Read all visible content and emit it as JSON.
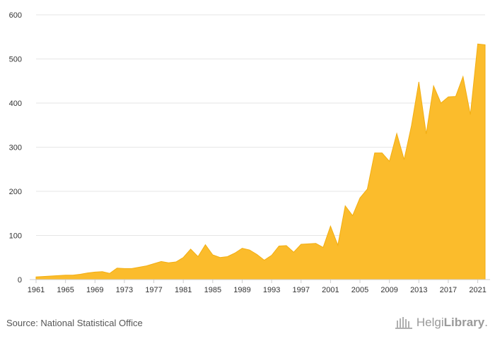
{
  "chart_data": {
    "type": "area",
    "x": [
      1961,
      1962,
      1963,
      1964,
      1965,
      1966,
      1967,
      1968,
      1969,
      1970,
      1971,
      1972,
      1973,
      1974,
      1975,
      1976,
      1977,
      1978,
      1979,
      1980,
      1981,
      1982,
      1983,
      1984,
      1985,
      1986,
      1987,
      1988,
      1989,
      1990,
      1991,
      1992,
      1993,
      1994,
      1995,
      1996,
      1997,
      1998,
      1999,
      2000,
      2001,
      2002,
      2003,
      2004,
      2005,
      2006,
      2007,
      2008,
      2009,
      2010,
      2011,
      2012,
      2013,
      2014,
      2015,
      2016,
      2017,
      2018,
      2019,
      2020,
      2021,
      2022
    ],
    "values": [
      6,
      7,
      8,
      9,
      10,
      10,
      12,
      15,
      17,
      18,
      14,
      26,
      25,
      25,
      28,
      31,
      36,
      41,
      38,
      40,
      50,
      69,
      52,
      79,
      56,
      50,
      52,
      60,
      71,
      67,
      57,
      44,
      55,
      76,
      77,
      62,
      80,
      81,
      82,
      73,
      121,
      78,
      167,
      145,
      185,
      205,
      287,
      287,
      268,
      331,
      272,
      349,
      448,
      330,
      439,
      400,
      414,
      415,
      460,
      374,
      534,
      532
    ],
    "xticks": [
      1961,
      1965,
      1969,
      1973,
      1977,
      1981,
      1985,
      1989,
      1993,
      1997,
      2001,
      2005,
      2009,
      2013,
      2017,
      2021
    ],
    "yticks": [
      0,
      100,
      200,
      300,
      400,
      500,
      600
    ],
    "xlim": [
      1961,
      2022
    ],
    "ylim": [
      0,
      600
    ],
    "grid": true,
    "xlabel": "",
    "ylabel": "",
    "color": "#FBBC2C"
  },
  "footer": {
    "source": "Source: National Statistical Office",
    "brand_light": "Helgi",
    "brand_bold": "Library",
    "brand_dot": "."
  }
}
